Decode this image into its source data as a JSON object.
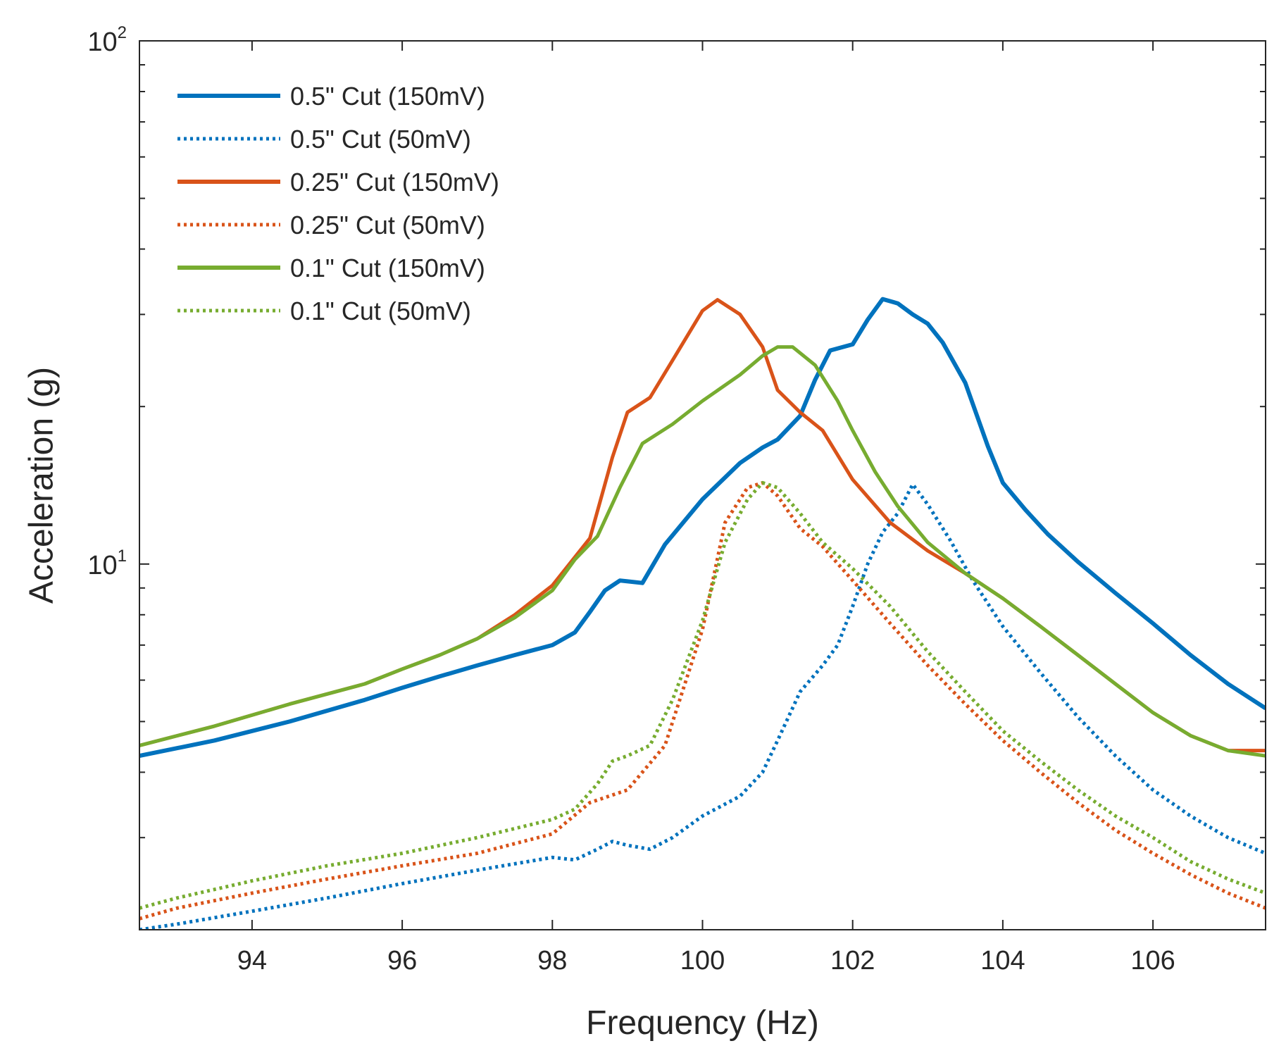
{
  "chart_data": {
    "type": "line",
    "title": "",
    "xlabel": "Frequency (Hz)",
    "ylabel": "Acceleration (g)",
    "xlim": [
      92.5,
      107.5
    ],
    "ylim": [
      2,
      100
    ],
    "yscale": "log",
    "xticks": [
      94,
      96,
      98,
      100,
      102,
      104,
      106
    ],
    "xtick_labels": [
      "94",
      "96",
      "98",
      "100",
      "102",
      "104",
      "106"
    ],
    "yticks": [
      {
        "value": 10,
        "base": "10",
        "exp": "1"
      },
      {
        "value": 100,
        "base": "10",
        "exp": "2"
      }
    ],
    "legend_position": "top-left",
    "series": [
      {
        "name": "0.5\" Cut (150mV)",
        "color": "#0072BD",
        "style": "solid",
        "x": [
          92.5,
          93.5,
          94.5,
          95.5,
          96.0,
          96.5,
          97.0,
          97.5,
          98.0,
          98.3,
          98.5,
          98.7,
          98.9,
          99.2,
          99.5,
          100.0,
          100.5,
          100.8,
          101.0,
          101.3,
          101.5,
          101.7,
          102.0,
          102.2,
          102.4,
          102.6,
          102.8,
          103.0,
          103.2,
          103.5,
          103.8,
          104.0,
          104.3,
          104.6,
          105.0,
          105.5,
          106.0,
          106.5,
          107.0,
          107.5
        ],
        "y": [
          4.3,
          4.6,
          5.0,
          5.5,
          5.8,
          6.1,
          6.4,
          6.7,
          7.0,
          7.4,
          8.1,
          8.9,
          9.3,
          9.2,
          10.9,
          13.3,
          15.6,
          16.7,
          17.3,
          19.2,
          22.5,
          25.6,
          26.3,
          29.3,
          32.1,
          31.5,
          30.0,
          28.8,
          26.5,
          22.2,
          16.8,
          14.3,
          12.7,
          11.4,
          10.1,
          8.8,
          7.7,
          6.7,
          5.9,
          5.3
        ]
      },
      {
        "name": "0.5\" Cut (50mV)",
        "color": "#0072BD",
        "style": "dotted",
        "x": [
          92.5,
          93.0,
          94.0,
          95.0,
          96.0,
          97.0,
          98.0,
          98.3,
          98.6,
          98.8,
          99.0,
          99.3,
          99.6,
          100.0,
          100.5,
          100.8,
          101.0,
          101.3,
          101.6,
          101.8,
          102.0,
          102.2,
          102.4,
          102.6,
          102.8,
          103.0,
          103.3,
          103.6,
          104.0,
          104.5,
          105.0,
          105.5,
          106.0,
          106.5,
          107.0,
          107.5
        ],
        "y": [
          2.0,
          2.05,
          2.17,
          2.3,
          2.45,
          2.6,
          2.75,
          2.72,
          2.85,
          2.95,
          2.9,
          2.85,
          3.0,
          3.3,
          3.6,
          4.0,
          4.6,
          5.7,
          6.4,
          7.0,
          8.3,
          10.0,
          11.5,
          12.5,
          14.2,
          13.0,
          11.1,
          9.3,
          7.6,
          6.2,
          5.1,
          4.3,
          3.7,
          3.3,
          3.0,
          2.8
        ]
      },
      {
        "name": "0.25\" Cut (150mV)",
        "color": "#D95319",
        "style": "solid",
        "x": [
          92.5,
          93.5,
          94.5,
          95.5,
          96.0,
          96.5,
          97.0,
          97.5,
          98.0,
          98.5,
          98.8,
          99.0,
          99.3,
          99.6,
          100.0,
          100.2,
          100.5,
          100.8,
          101.0,
          101.3,
          101.6,
          102.0,
          102.5,
          103.0,
          103.5,
          104.0,
          104.5,
          105.0,
          105.5,
          106.0,
          106.5,
          107.0,
          107.5
        ],
        "y": [
          4.5,
          4.9,
          5.4,
          5.9,
          6.3,
          6.7,
          7.2,
          8.0,
          9.1,
          11.2,
          16.0,
          19.5,
          20.8,
          24.5,
          30.5,
          32.0,
          30.0,
          26.0,
          21.5,
          19.5,
          18.0,
          14.5,
          12.0,
          10.6,
          9.6,
          8.6,
          7.6,
          6.7,
          5.9,
          5.2,
          4.7,
          4.4,
          4.4
        ]
      },
      {
        "name": "0.25\" Cut (50mV)",
        "color": "#D95319",
        "style": "dotted",
        "x": [
          92.5,
          93.0,
          94.0,
          95.0,
          96.0,
          97.0,
          98.0,
          98.5,
          99.0,
          99.5,
          100.0,
          100.3,
          100.6,
          100.8,
          101.0,
          101.3,
          101.6,
          102.0,
          102.5,
          103.0,
          103.5,
          104.0,
          104.5,
          105.0,
          105.5,
          106.0,
          106.5,
          107.0,
          107.5
        ],
        "y": [
          2.1,
          2.2,
          2.35,
          2.5,
          2.65,
          2.8,
          3.05,
          3.5,
          3.7,
          4.5,
          7.5,
          12.0,
          14.0,
          14.3,
          13.5,
          11.7,
          10.8,
          9.3,
          7.7,
          6.4,
          5.4,
          4.6,
          4.0,
          3.5,
          3.1,
          2.8,
          2.55,
          2.35,
          2.2
        ]
      },
      {
        "name": "0.1\" Cut (150mV)",
        "color": "#77AC30",
        "style": "solid",
        "x": [
          92.5,
          93.5,
          94.5,
          95.5,
          96.0,
          96.5,
          97.0,
          97.5,
          98.0,
          98.3,
          98.6,
          98.9,
          99.2,
          99.6,
          100.0,
          100.5,
          100.8,
          101.0,
          101.2,
          101.5,
          101.8,
          102.0,
          102.3,
          102.6,
          103.0,
          103.5,
          104.0,
          104.5,
          105.0,
          105.5,
          106.0,
          106.5,
          107.0,
          107.5
        ],
        "y": [
          4.5,
          4.9,
          5.4,
          5.9,
          6.3,
          6.7,
          7.2,
          7.9,
          8.9,
          10.2,
          11.3,
          14.0,
          17.0,
          18.5,
          20.5,
          23.0,
          25.0,
          26.0,
          26.0,
          24.0,
          20.5,
          18.0,
          15.0,
          12.9,
          11.0,
          9.6,
          8.6,
          7.6,
          6.7,
          5.9,
          5.2,
          4.7,
          4.4,
          4.3
        ]
      },
      {
        "name": "0.1\" Cut (50mV)",
        "color": "#77AC30",
        "style": "dotted",
        "x": [
          92.5,
          93.0,
          94.0,
          95.0,
          96.0,
          97.0,
          98.0,
          98.3,
          98.6,
          98.8,
          99.0,
          99.3,
          99.6,
          100.0,
          100.3,
          100.6,
          100.8,
          101.0,
          101.3,
          101.6,
          102.0,
          102.5,
          103.0,
          103.5,
          104.0,
          104.5,
          105.0,
          105.5,
          106.0,
          106.5,
          107.0,
          107.5
        ],
        "y": [
          2.2,
          2.3,
          2.48,
          2.65,
          2.8,
          3.0,
          3.25,
          3.4,
          3.8,
          4.2,
          4.3,
          4.5,
          5.5,
          7.8,
          11.0,
          13.3,
          14.3,
          14.0,
          12.5,
          11.0,
          9.8,
          8.3,
          6.8,
          5.7,
          4.8,
          4.2,
          3.7,
          3.3,
          3.0,
          2.7,
          2.5,
          2.35
        ]
      }
    ]
  }
}
